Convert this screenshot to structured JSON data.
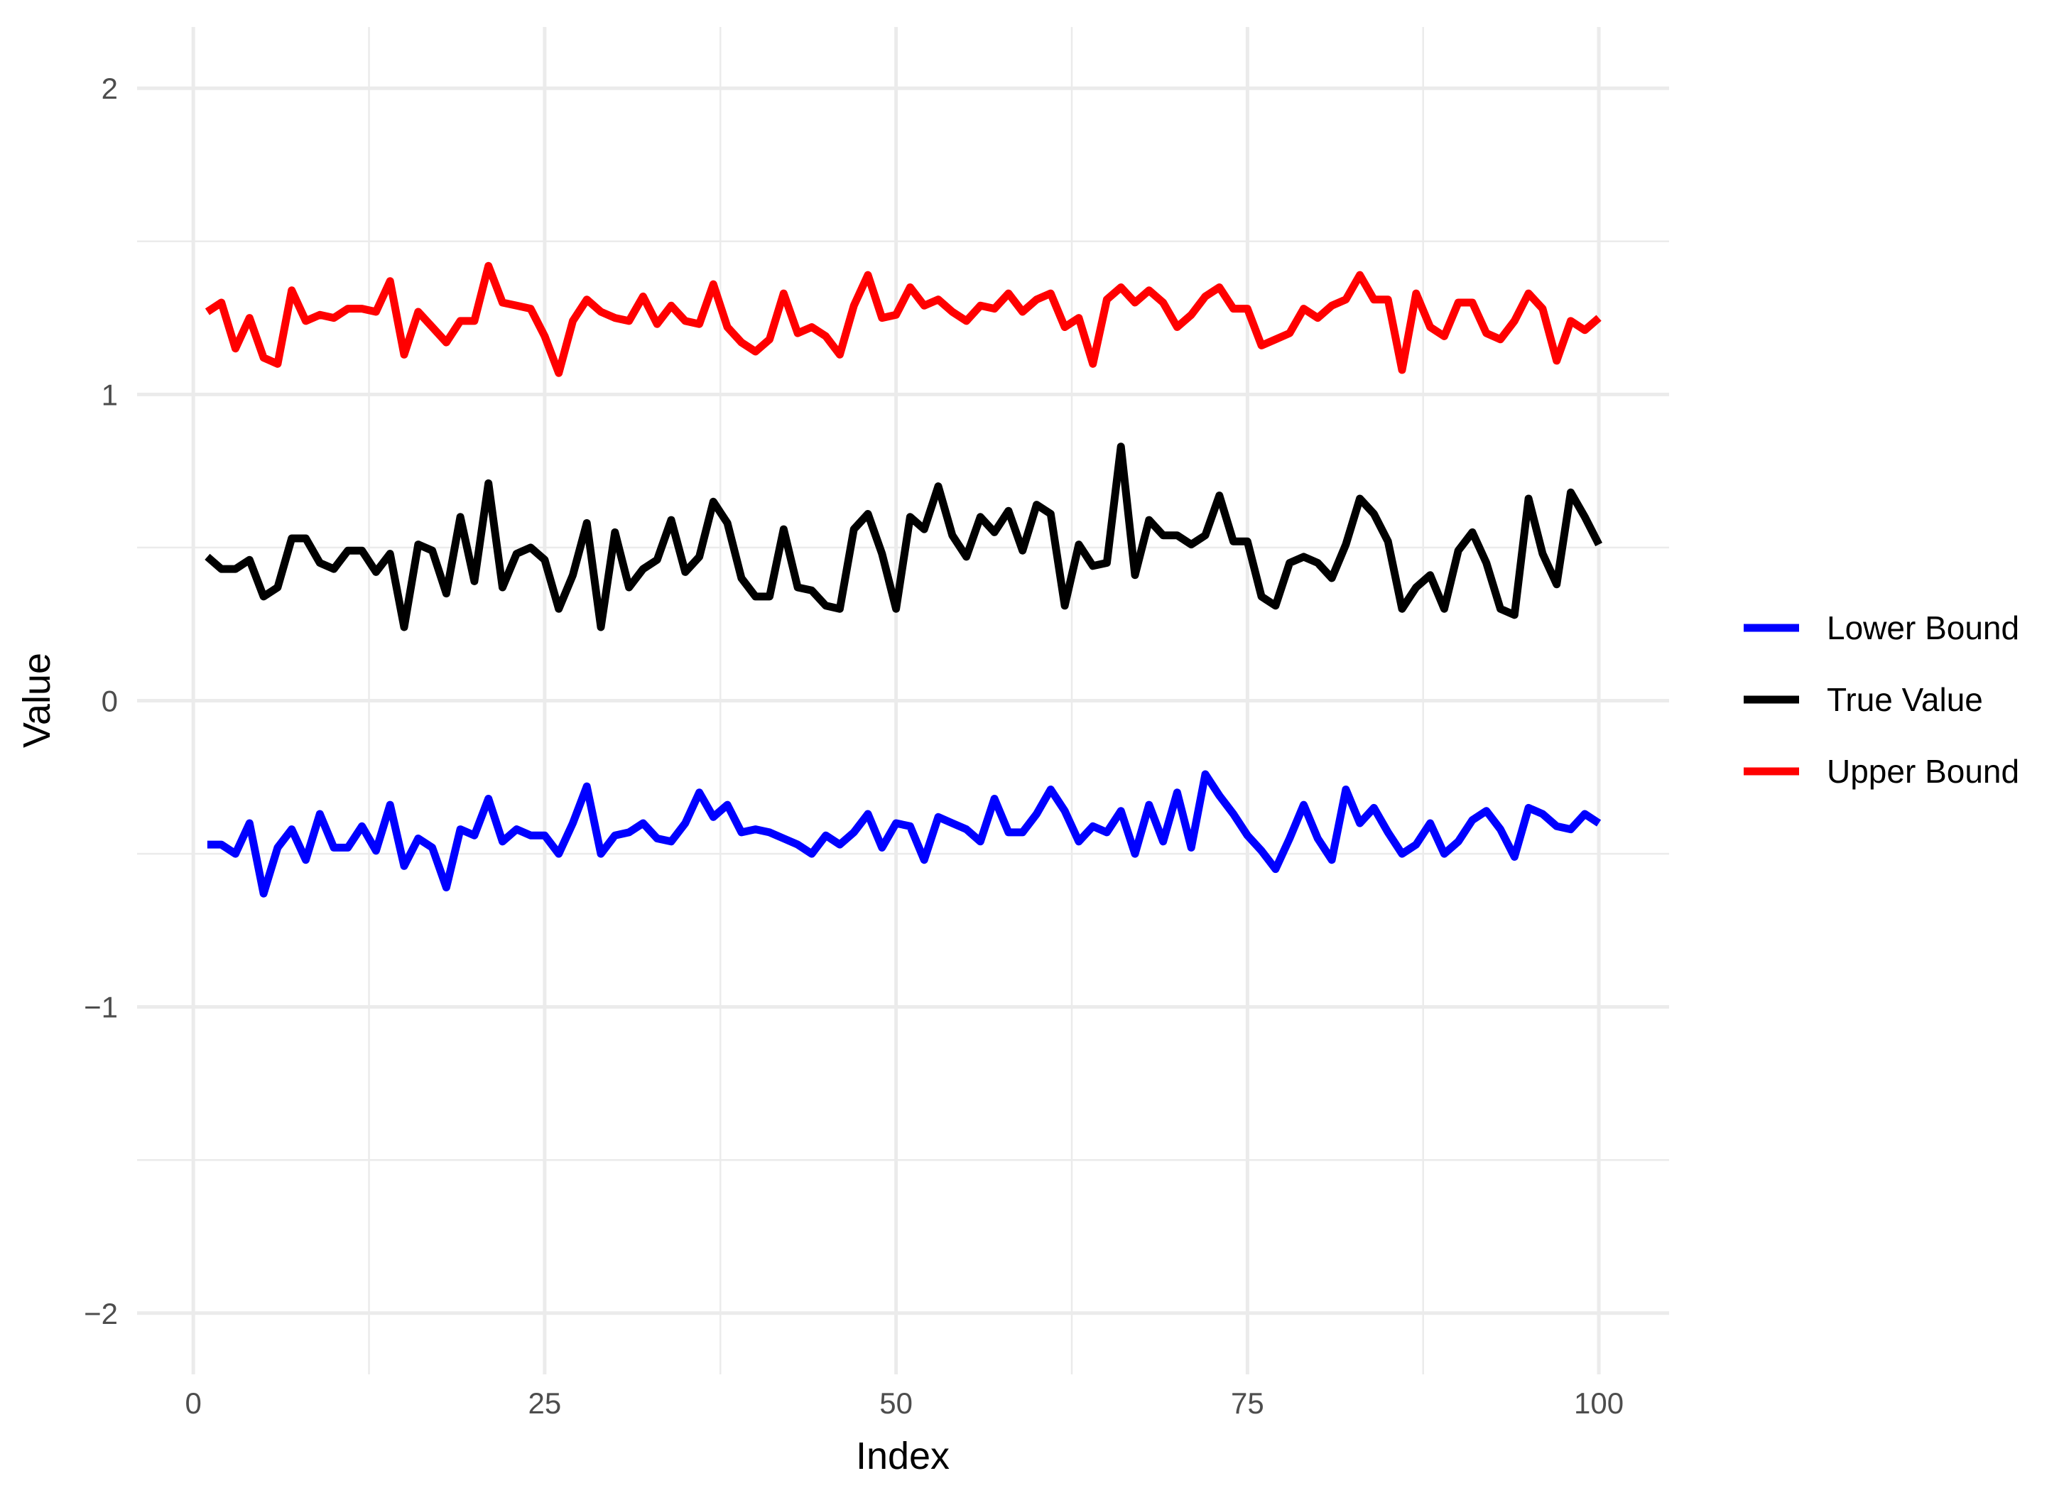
{
  "chart_data": {
    "type": "line",
    "title": "",
    "xlabel": "Index",
    "ylabel": "Value",
    "xlim": [
      -4,
      105
    ],
    "ylim": [
      -2.2,
      2.2
    ],
    "x_ticks": [
      0,
      25,
      50,
      75,
      100
    ],
    "x_tick_labels": [
      "0",
      "25",
      "50",
      "75",
      "100"
    ],
    "y_ticks": [
      -2,
      -1,
      0,
      1,
      2
    ],
    "y_tick_labels": [
      "−2",
      "−1",
      "0",
      "1",
      "2"
    ],
    "grid": true,
    "legend_position": "right",
    "x": [
      1,
      2,
      3,
      4,
      5,
      6,
      7,
      8,
      9,
      10,
      11,
      12,
      13,
      14,
      15,
      16,
      17,
      18,
      19,
      20,
      21,
      22,
      23,
      24,
      25,
      26,
      27,
      28,
      29,
      30,
      31,
      32,
      33,
      34,
      35,
      36,
      37,
      38,
      39,
      40,
      41,
      42,
      43,
      44,
      45,
      46,
      47,
      48,
      49,
      50,
      51,
      52,
      53,
      54,
      55,
      56,
      57,
      58,
      59,
      60,
      61,
      62,
      63,
      64,
      65,
      66,
      67,
      68,
      69,
      70,
      71,
      72,
      73,
      74,
      75,
      76,
      77,
      78,
      79,
      80,
      81,
      82,
      83,
      84,
      85,
      86,
      87,
      88,
      89,
      90,
      91,
      92,
      93,
      94,
      95,
      96,
      97,
      98,
      99,
      100
    ],
    "series": [
      {
        "name": "Lower Bound",
        "color": "#0000FF",
        "values": [
          -0.47,
          -0.47,
          -0.5,
          -0.4,
          -0.63,
          -0.48,
          -0.42,
          -0.52,
          -0.37,
          -0.48,
          -0.48,
          -0.41,
          -0.49,
          -0.34,
          -0.54,
          -0.45,
          -0.48,
          -0.61,
          -0.42,
          -0.44,
          -0.32,
          -0.46,
          -0.42,
          -0.44,
          -0.44,
          -0.5,
          -0.4,
          -0.28,
          -0.5,
          -0.44,
          -0.43,
          -0.4,
          -0.45,
          -0.46,
          -0.4,
          -0.3,
          -0.38,
          -0.34,
          -0.43,
          -0.42,
          -0.43,
          -0.45,
          -0.47,
          -0.5,
          -0.44,
          -0.47,
          -0.43,
          -0.37,
          -0.48,
          -0.4,
          -0.41,
          -0.52,
          -0.38,
          -0.4,
          -0.42,
          -0.46,
          -0.32,
          -0.43,
          -0.43,
          -0.37,
          -0.29,
          -0.36,
          -0.46,
          -0.41,
          -0.43,
          -0.36,
          -0.5,
          -0.34,
          -0.46,
          -0.3,
          -0.48,
          -0.24,
          -0.31,
          -0.37,
          -0.44,
          -0.49,
          -0.55,
          -0.45,
          -0.34,
          -0.45,
          -0.52,
          -0.29,
          -0.4,
          -0.35,
          -0.43,
          -0.5,
          -0.47,
          -0.4,
          -0.5,
          -0.46,
          -0.39,
          -0.36,
          -0.42,
          -0.51,
          -0.35,
          -0.37,
          -0.41,
          -0.42,
          -0.37,
          -0.4
        ]
      },
      {
        "name": "True Value",
        "color": "#000000",
        "values": [
          0.47,
          0.43,
          0.43,
          0.46,
          0.34,
          0.37,
          0.53,
          0.53,
          0.45,
          0.43,
          0.49,
          0.49,
          0.42,
          0.48,
          0.24,
          0.51,
          0.49,
          0.35,
          0.6,
          0.39,
          0.71,
          0.37,
          0.48,
          0.5,
          0.46,
          0.3,
          0.41,
          0.58,
          0.24,
          0.55,
          0.37,
          0.43,
          0.46,
          0.59,
          0.42,
          0.47,
          0.65,
          0.58,
          0.4,
          0.34,
          0.34,
          0.56,
          0.37,
          0.36,
          0.31,
          0.3,
          0.56,
          0.61,
          0.48,
          0.3,
          0.6,
          0.56,
          0.7,
          0.54,
          0.47,
          0.6,
          0.55,
          0.62,
          0.49,
          0.64,
          0.61,
          0.31,
          0.51,
          0.44,
          0.45,
          0.83,
          0.41,
          0.59,
          0.54,
          0.54,
          0.51,
          0.54,
          0.67,
          0.52,
          0.52,
          0.34,
          0.31,
          0.45,
          0.47,
          0.45,
          0.4,
          0.51,
          0.66,
          0.61,
          0.52,
          0.3,
          0.37,
          0.41,
          0.3,
          0.49,
          0.55,
          0.45,
          0.3,
          0.28,
          0.66,
          0.48,
          0.38,
          0.68,
          0.6,
          0.51
        ]
      },
      {
        "name": "Upper Bound",
        "color": "#FF0000",
        "values": [
          1.27,
          1.3,
          1.15,
          1.25,
          1.12,
          1.1,
          1.34,
          1.24,
          1.26,
          1.25,
          1.28,
          1.28,
          1.27,
          1.37,
          1.13,
          1.27,
          1.22,
          1.17,
          1.24,
          1.24,
          1.42,
          1.3,
          1.29,
          1.28,
          1.19,
          1.07,
          1.24,
          1.31,
          1.27,
          1.25,
          1.24,
          1.32,
          1.23,
          1.29,
          1.24,
          1.23,
          1.36,
          1.22,
          1.17,
          1.14,
          1.18,
          1.33,
          1.2,
          1.22,
          1.19,
          1.13,
          1.29,
          1.39,
          1.25,
          1.26,
          1.35,
          1.29,
          1.31,
          1.27,
          1.24,
          1.29,
          1.28,
          1.33,
          1.27,
          1.31,
          1.33,
          1.22,
          1.25,
          1.1,
          1.31,
          1.35,
          1.3,
          1.34,
          1.3,
          1.22,
          1.26,
          1.32,
          1.35,
          1.28,
          1.28,
          1.16,
          1.18,
          1.2,
          1.28,
          1.25,
          1.29,
          1.31,
          1.39,
          1.31,
          1.31,
          1.08,
          1.33,
          1.22,
          1.19,
          1.3,
          1.3,
          1.2,
          1.18,
          1.24,
          1.33,
          1.28,
          1.11,
          1.24,
          1.21,
          1.25
        ]
      }
    ]
  }
}
